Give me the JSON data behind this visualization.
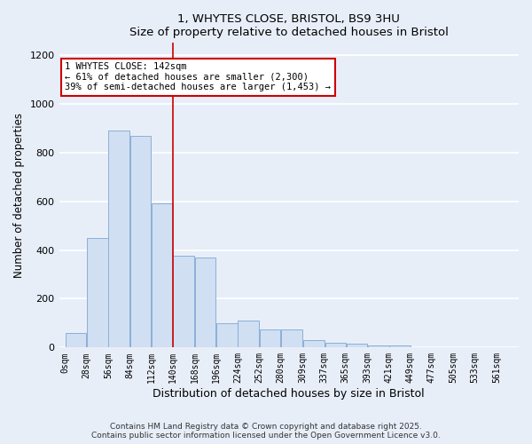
{
  "title1": "1, WHYTES CLOSE, BRISTOL, BS9 3HU",
  "title2": "Size of property relative to detached houses in Bristol",
  "xlabel": "Distribution of detached houses by size in Bristol",
  "ylabel": "Number of detached properties",
  "bar_left_edges": [
    0,
    28,
    56,
    84,
    112,
    140,
    168,
    196,
    224,
    252,
    280,
    309,
    337,
    365,
    393,
    421,
    449,
    477,
    505,
    533
  ],
  "bar_heights": [
    60,
    450,
    890,
    870,
    590,
    375,
    370,
    100,
    110,
    75,
    75,
    30,
    20,
    15,
    10,
    10,
    0,
    0,
    0,
    0
  ],
  "bin_width": 28,
  "bar_color": "#d0dff2",
  "bar_edge_color": "#8ab0d8",
  "background_color": "#e8eef8",
  "grid_color": "#ffffff",
  "red_line_x": 140,
  "annotation_text": "1 WHYTES CLOSE: 142sqm\n← 61% of detached houses are smaller (2,300)\n39% of semi-detached houses are larger (1,453) →",
  "annotation_box_color": "#ffffff",
  "annotation_box_edge": "#cc0000",
  "ylim": [
    0,
    1250
  ],
  "yticks": [
    0,
    200,
    400,
    600,
    800,
    1000,
    1200
  ],
  "xtick_labels": [
    "0sqm",
    "28sqm",
    "56sqm",
    "84sqm",
    "112sqm",
    "140sqm",
    "168sqm",
    "196sqm",
    "224sqm",
    "252sqm",
    "280sqm",
    "309sqm",
    "337sqm",
    "365sqm",
    "393sqm",
    "421sqm",
    "449sqm",
    "477sqm",
    "505sqm",
    "533sqm",
    "561sqm"
  ],
  "footer_text": "Contains HM Land Registry data © Crown copyright and database right 2025.\nContains public sector information licensed under the Open Government Licence v3.0."
}
